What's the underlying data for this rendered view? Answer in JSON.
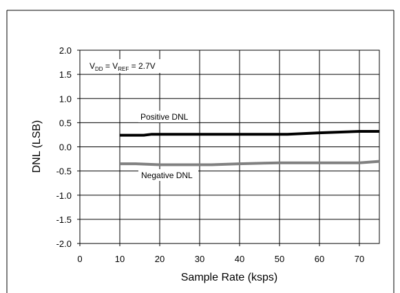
{
  "chart_data": {
    "type": "line",
    "xlabel": "Sample Rate (ksps)",
    "ylabel": "DNL (LSB)",
    "xlim": [
      0,
      75
    ],
    "ylim": [
      -2.0,
      2.0
    ],
    "x_ticks": [
      "0",
      "10",
      "20",
      "30",
      "40",
      "50",
      "60",
      "70"
    ],
    "x_tick_values": [
      0,
      10,
      20,
      30,
      40,
      50,
      60,
      70
    ],
    "y_ticks": [
      "2.0",
      "1.5",
      "1.0",
      "0.5",
      "0.0",
      "-0.5",
      "-1.0",
      "-1.5",
      "-2.0"
    ],
    "y_tick_values": [
      2.0,
      1.5,
      1.0,
      0.5,
      0.0,
      -0.5,
      -1.0,
      -1.5,
      -2.0
    ],
    "grid": true,
    "series": [
      {
        "name": "Positive DNL",
        "color": "#000000",
        "x": [
          10,
          16,
          18,
          20,
          30,
          40,
          52,
          60,
          70,
          75
        ],
        "y": [
          0.24,
          0.24,
          0.26,
          0.26,
          0.26,
          0.26,
          0.26,
          0.29,
          0.32,
          0.32
        ]
      },
      {
        "name": "Negative DNL",
        "color": "#808080",
        "x": [
          10,
          14,
          20,
          30,
          33,
          40,
          50,
          60,
          70,
          75
        ],
        "y": [
          -0.35,
          -0.35,
          -0.37,
          -0.37,
          -0.37,
          -0.35,
          -0.33,
          -0.33,
          -0.33,
          -0.3
        ]
      }
    ],
    "annotation": {
      "v1": "V",
      "v1_sub": "DD",
      "eq1": " = V",
      "v2_sub": "REF",
      "eq2": " = 2.7V"
    }
  }
}
